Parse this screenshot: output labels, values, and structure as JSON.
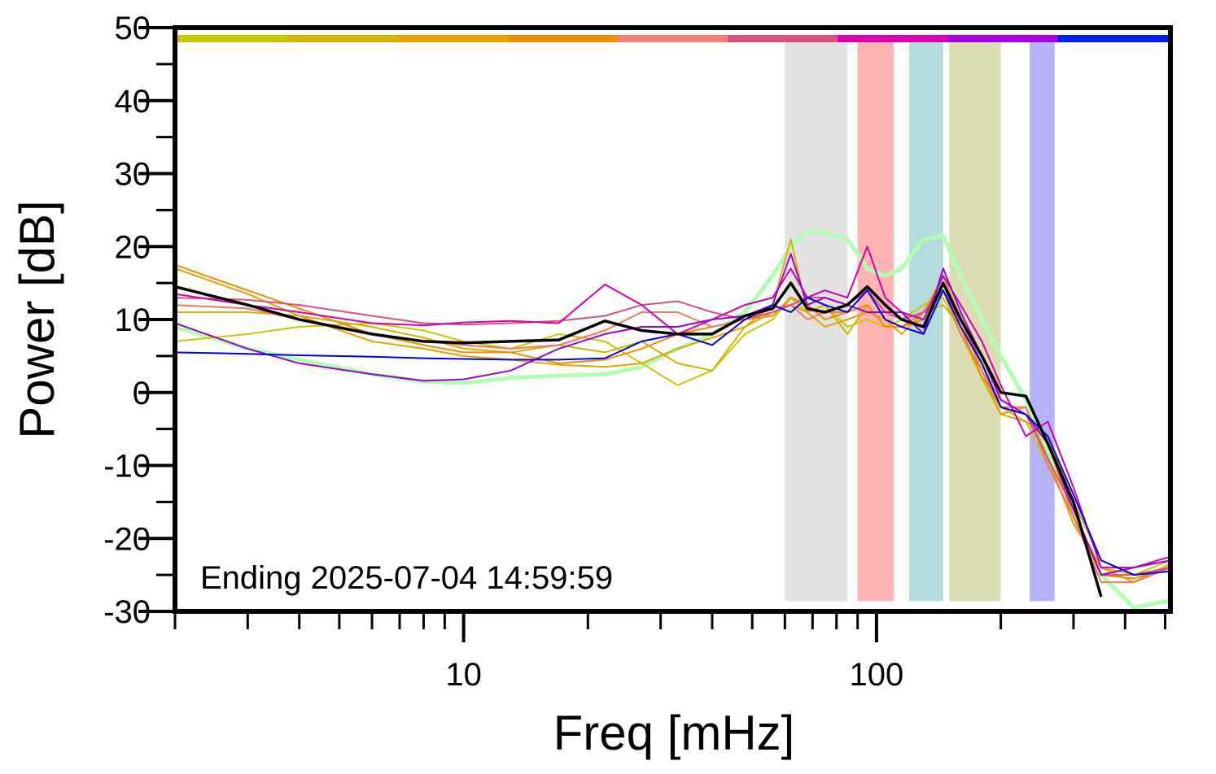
{
  "chart_data": {
    "type": "line",
    "xlabel": "Freq [mHz]",
    "ylabel": "Power [dB]",
    "annotation": "Ending 2025-07-04 14:59:59",
    "xscale": "log",
    "xlim": [
      2,
      515
    ],
    "ylim": [
      -30,
      50
    ],
    "xticks": [
      10,
      100
    ],
    "xminor_ticks": [
      2,
      3,
      4,
      5,
      6,
      7,
      8,
      9,
      20,
      30,
      40,
      50,
      60,
      70,
      80,
      90,
      200,
      300,
      400,
      500
    ],
    "yticks": [
      50,
      40,
      30,
      20,
      10,
      0,
      -10,
      -20,
      -30
    ],
    "yminor_ticks": [
      45,
      35,
      25,
      15,
      5,
      -5,
      -15,
      -25
    ],
    "color_bar": [
      "#c8c800",
      "#d4b400",
      "#f0a000",
      "#f09000",
      "#f08070",
      "#d85080",
      "#d800b0",
      "#a800e0",
      "#0020f0"
    ],
    "bands": [
      {
        "x": [
          60,
          85
        ],
        "y": [
          -28.6,
          48.3
        ],
        "color": "#e2e2e2"
      },
      {
        "x": [
          90,
          110
        ],
        "y": [
          -28.6,
          48.3
        ],
        "color": "#ffb3b3"
      },
      {
        "x": [
          120,
          145
        ],
        "y": [
          -28.6,
          48.3
        ],
        "color": "#b3dcdc"
      },
      {
        "x": [
          150,
          200
        ],
        "y": [
          -28.6,
          48.3
        ],
        "color": "#dcdcb4"
      },
      {
        "x": [
          235,
          270
        ],
        "y": [
          -28.6,
          48.3
        ],
        "color": "#b4b4f8"
      }
    ],
    "x": [
      2,
      3,
      4,
      6,
      8,
      10,
      13,
      17,
      22,
      27,
      33,
      40,
      48,
      56,
      62,
      68,
      75,
      85,
      95,
      105,
      115,
      130,
      145,
      160,
      180,
      200,
      230,
      260,
      300,
      350,
      420,
      515
    ],
    "series": [
      {
        "color": "#b0ffb0",
        "width": 5,
        "values": [
          9,
          6,
          4.5,
          2.5,
          1.5,
          1.3,
          2,
          2.3,
          2.5,
          3.5,
          6,
          8,
          11,
          16,
          20,
          22,
          22,
          21,
          17,
          16,
          17,
          21,
          21.5,
          16,
          10,
          5,
          -1,
          -8,
          -17,
          -25,
          -29.5,
          -28.5
        ]
      },
      {
        "color": "#c8c800",
        "width": 2,
        "values": [
          7,
          8,
          9,
          9.5,
          8.5,
          7,
          6,
          8,
          7,
          4,
          1,
          3,
          8,
          10,
          13,
          11,
          12,
          9,
          10,
          9,
          10,
          12,
          13,
          8,
          2,
          -2,
          -4,
          -10,
          -17,
          -24,
          -25,
          -23
        ]
      },
      {
        "color": "#d4b000",
        "width": 2,
        "values": [
          11,
          11,
          10.5,
          9,
          7.5,
          6,
          5.5,
          6.5,
          5.5,
          7,
          4,
          3,
          9,
          12,
          21,
          11,
          12,
          8,
          12,
          9,
          9,
          11,
          12,
          9,
          2,
          -3,
          -4,
          -6,
          -15,
          -23,
          -25,
          -24
        ]
      },
      {
        "color": "#e8a000",
        "width": 2,
        "values": [
          17,
          13.5,
          10.5,
          7,
          6,
          5,
          4.5,
          3.8,
          3.5,
          4,
          6,
          7.5,
          9,
          11,
          12,
          11,
          9,
          10,
          11,
          10,
          8,
          11,
          16,
          10,
          3,
          -3,
          -2,
          -9,
          -18,
          -24,
          -26,
          -23.5
        ]
      },
      {
        "color": "#f08c00",
        "width": 2,
        "values": [
          17.5,
          14,
          11.5,
          8,
          6.5,
          5.5,
          5.5,
          4,
          4.5,
          6,
          8,
          9,
          10,
          10.5,
          13,
          12,
          10,
          11,
          12,
          9,
          9,
          10,
          15,
          9,
          2,
          -1,
          -3,
          -7,
          -17,
          -25,
          -25.5,
          -24
        ]
      },
      {
        "color": "#f07860",
        "width": 2,
        "values": [
          12,
          11.5,
          10,
          8,
          7,
          6.5,
          6,
          6.5,
          8.5,
          11,
          11,
          9,
          10,
          11.5,
          12,
          10,
          11,
          11,
          14,
          10,
          9,
          11,
          14,
          8,
          3,
          -2,
          -2,
          -10,
          -17,
          -26,
          -26,
          -24
        ]
      },
      {
        "color": "#d85080",
        "width": 2,
        "values": [
          13,
          12.7,
          12,
          10.5,
          9.5,
          9.3,
          9.5,
          9.8,
          10.5,
          12,
          12.5,
          11,
          10,
          11,
          12,
          13,
          13,
          12,
          14,
          11,
          10,
          11,
          14,
          10,
          4,
          -2,
          -3,
          -9,
          -16,
          -25,
          -25,
          -24
        ]
      },
      {
        "color": "#d000b0",
        "width": 2,
        "values": [
          13.5,
          12,
          11,
          9.5,
          9.2,
          9.6,
          9.8,
          9.5,
          14.8,
          12,
          8,
          10,
          12,
          13,
          17,
          13,
          14,
          13,
          20,
          13,
          11,
          10,
          16,
          12,
          7,
          1,
          -6,
          -4,
          -13,
          -24,
          -24,
          -22.5
        ]
      },
      {
        "color": "#a000d0",
        "width": 2,
        "values": [
          9.5,
          6,
          4,
          2.5,
          1.6,
          1.8,
          3,
          6,
          8,
          9,
          9,
          10,
          10.5,
          12,
          19,
          12,
          13,
          12,
          11,
          11,
          11,
          8,
          17,
          11,
          5,
          -1,
          -3,
          -7,
          -16,
          -25,
          -24,
          -23
        ]
      },
      {
        "color": "#0000e0",
        "width": 2,
        "values": [
          5.5,
          5.3,
          5.1,
          4.9,
          4.7,
          4.6,
          4.5,
          4.5,
          4.7,
          7,
          8,
          6.5,
          10,
          12,
          11,
          13,
          12,
          11,
          14,
          10,
          9,
          8,
          14,
          9,
          4,
          -2,
          -3,
          -6,
          -14,
          -23,
          -25,
          -24.5
        ]
      },
      {
        "color": "#000000",
        "width": 3.5,
        "values": [
          14.5,
          12,
          10,
          8,
          7,
          6.8,
          7,
          7.2,
          9.8,
          8.5,
          8,
          8,
          10.5,
          11.5,
          15,
          11.5,
          11,
          12,
          14.5,
          12,
          10,
          9,
          15,
          10,
          5,
          0,
          -0.5,
          -7,
          -15,
          -28,
          null,
          null
        ]
      }
    ]
  }
}
